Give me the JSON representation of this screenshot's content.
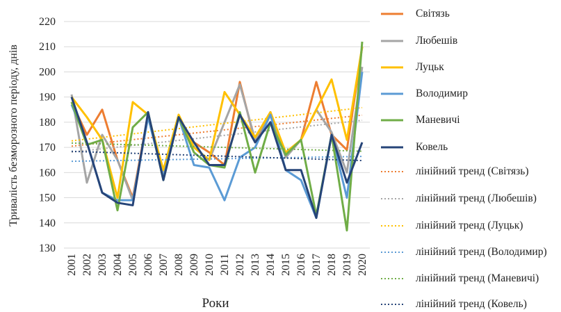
{
  "chart_data": {
    "type": "line",
    "y_label": "Тривалість безморозного періоду, днів",
    "x_label": "Роки",
    "categories": [
      "2001",
      "2002",
      "2003",
      "2004",
      "2005",
      "2006",
      "2007",
      "2008",
      "2009",
      "2010",
      "2011",
      "2012",
      "2013",
      "2014",
      "2015",
      "2016",
      "2017",
      "2018",
      "2019",
      "2020"
    ],
    "ylim": [
      130,
      220
    ],
    "yticks": [
      130,
      140,
      150,
      160,
      170,
      180,
      190,
      200,
      210,
      220
    ],
    "grid": true,
    "series": [
      {
        "name": "Світязь",
        "trend_name": "лінійний тренд (Світязь)",
        "color": "#ed7d31",
        "values": [
          188,
          175,
          185,
          165,
          150,
          183,
          160,
          182,
          172,
          168,
          163,
          196,
          172,
          184,
          167,
          173,
          196,
          175,
          169,
          210
        ]
      },
      {
        "name": "Любешів",
        "trend_name": "лінійний тренд (Любешів)",
        "color": "#a5a5a5",
        "values": [
          191,
          156,
          175,
          165,
          149,
          182,
          160,
          182,
          170,
          165,
          180,
          195,
          173,
          184,
          166,
          173,
          185,
          176,
          160,
          202
        ]
      },
      {
        "name": "Луцьк",
        "trend_name": "лінійний тренд (Луцьк)",
        "color": "#ffc000",
        "values": [
          190,
          182,
          173,
          150,
          188,
          183,
          161,
          183,
          170,
          165,
          192,
          183,
          174,
          184,
          168,
          173,
          185,
          197,
          173,
          210
        ]
      },
      {
        "name": "Володимир",
        "trend_name": "лінійний тренд (Володимир)",
        "color": "#5b9bd5",
        "values": [
          187,
          172,
          152,
          149,
          149,
          182,
          158,
          182,
          163,
          162,
          149,
          166,
          170,
          183,
          161,
          157,
          142,
          175,
          150,
          200
        ]
      },
      {
        "name": "Маневичі",
        "trend_name": "лінійний тренд (Маневичі)",
        "color": "#70ad47",
        "values": [
          188,
          171,
          173,
          145,
          178,
          184,
          157,
          182,
          168,
          163,
          162,
          184,
          160,
          180,
          167,
          173,
          143,
          175,
          137,
          212
        ]
      },
      {
        "name": "Ковель",
        "trend_name": "лінійний тренд (Ковель)",
        "color": "#264478",
        "values": [
          190,
          172,
          152,
          148,
          147,
          184,
          157,
          182,
          172,
          163,
          163,
          183,
          172,
          180,
          161,
          161,
          142,
          175,
          156,
          172
        ]
      }
    ]
  }
}
